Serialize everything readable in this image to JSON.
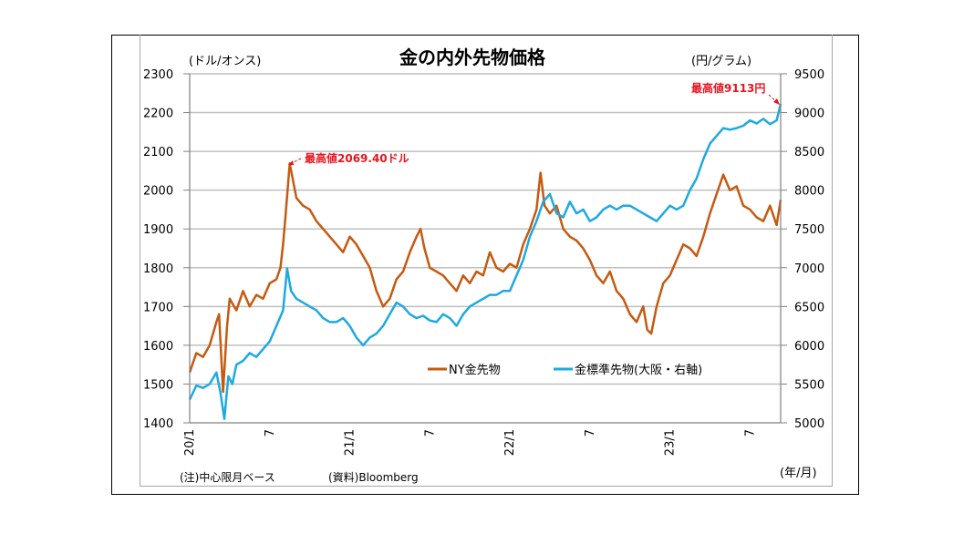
{
  "chart_data": {
    "type": "line",
    "title": "金の内外先物価格",
    "ylabel_left": "(ドル/オンス)",
    "ylabel_right": "(円/グラム)",
    "xlabel": "(年/月)",
    "note": "(注)中心限月ベース",
    "source": "(資料)Bloomberg",
    "ylim_left": [
      1400,
      2300
    ],
    "ylim_right": [
      5000,
      9500
    ],
    "yticks_left": [
      "1400",
      "1500",
      "1600",
      "1700",
      "1800",
      "1900",
      "2000",
      "2100",
      "2200",
      "2300"
    ],
    "yticks_right": [
      "5000",
      "5500",
      "6000",
      "6500",
      "7000",
      "7500",
      "8000",
      "8500",
      "9000",
      "9500"
    ],
    "xticks": [
      {
        "label": "20/1",
        "month": 0,
        "rotated": true
      },
      {
        "label": "7",
        "month": 6,
        "rotated": true
      },
      {
        "label": "21/1",
        "month": 12,
        "rotated": true
      },
      {
        "label": "7",
        "month": 18,
        "rotated": true
      },
      {
        "label": "22/1",
        "month": 24,
        "rotated": true
      },
      {
        "label": "7",
        "month": 30,
        "rotated": true
      },
      {
        "label": "23/1",
        "month": 36,
        "rotated": true
      },
      {
        "label": "7",
        "month": 42,
        "rotated": true
      }
    ],
    "xrange_months": [
      0,
      44.3
    ],
    "grid": true,
    "legend_position": "bottom-center-inside",
    "series": [
      {
        "name": "NY金先物",
        "axis": "left",
        "color": "#c55a11",
        "x_months": [
          0,
          0.5,
          1,
          1.5,
          2,
          2.2,
          2.5,
          2.8,
          3,
          3.5,
          4,
          4.5,
          5,
          5.5,
          6,
          6.5,
          6.8,
          7,
          7.2,
          7.5,
          8,
          8.5,
          9,
          9.5,
          10,
          10.5,
          11,
          11.5,
          12,
          12.5,
          13,
          13.5,
          14,
          14.5,
          15,
          15.5,
          16,
          16.5,
          17,
          17.3,
          17.6,
          18,
          18.5,
          19,
          19.5,
          20,
          20.5,
          21,
          21.5,
          22,
          22.5,
          23,
          23.5,
          24,
          24.5,
          25,
          25.5,
          26,
          26.3,
          26.6,
          27,
          27.5,
          28,
          28.5,
          29,
          29.5,
          30,
          30.5,
          31,
          31.5,
          32,
          32.5,
          33,
          33.5,
          34,
          34.3,
          34.6,
          35,
          35.5,
          36,
          36.5,
          37,
          37.5,
          38,
          38.5,
          39,
          39.5,
          40,
          40.5,
          41,
          41.5,
          42,
          42.5,
          43,
          43.5,
          44,
          44.3
        ],
        "values": [
          1530,
          1580,
          1570,
          1600,
          1660,
          1680,
          1480,
          1650,
          1720,
          1690,
          1740,
          1700,
          1730,
          1720,
          1760,
          1770,
          1800,
          1860,
          1940,
          2069,
          1980,
          1960,
          1950,
          1920,
          1900,
          1880,
          1860,
          1840,
          1880,
          1860,
          1830,
          1800,
          1740,
          1700,
          1720,
          1770,
          1790,
          1840,
          1880,
          1900,
          1850,
          1800,
          1790,
          1780,
          1760,
          1740,
          1780,
          1760,
          1790,
          1780,
          1840,
          1800,
          1790,
          1810,
          1800,
          1860,
          1900,
          1950,
          2045,
          1960,
          1940,
          1960,
          1900,
          1880,
          1870,
          1850,
          1820,
          1780,
          1760,
          1790,
          1740,
          1720,
          1680,
          1660,
          1700,
          1640,
          1630,
          1700,
          1760,
          1780,
          1820,
          1860,
          1850,
          1830,
          1880,
          1940,
          1990,
          2040,
          2000,
          2010,
          1960,
          1950,
          1930,
          1920,
          1960,
          1910,
          1975
        ],
        "annotation": {
          "text": "最高値2069.40ドル",
          "at_month": 7.5
        }
      },
      {
        "name": "金標準先物(大阪・右軸)",
        "axis": "right",
        "color": "#1ea9e1",
        "x_months": [
          0,
          0.5,
          1,
          1.5,
          2,
          2.3,
          2.6,
          2.9,
          3.2,
          3.5,
          4,
          4.5,
          5,
          5.5,
          6,
          6.5,
          7,
          7.3,
          7.6,
          8,
          8.5,
          9,
          9.5,
          10,
          10.5,
          11,
          11.5,
          12,
          12.5,
          13,
          13.5,
          14,
          14.5,
          15,
          15.5,
          16,
          16.5,
          17,
          17.5,
          18,
          18.5,
          19,
          19.5,
          20,
          20.5,
          21,
          21.5,
          22,
          22.5,
          23,
          23.5,
          24,
          24.5,
          25,
          25.5,
          26,
          26.5,
          27,
          27.5,
          28,
          28.5,
          29,
          29.5,
          30,
          30.5,
          31,
          31.5,
          32,
          32.5,
          33,
          33.5,
          34,
          34.5,
          35,
          35.5,
          36,
          36.5,
          37,
          37.5,
          38,
          38.5,
          39,
          39.5,
          40,
          40.5,
          41,
          41.5,
          42,
          42.5,
          43,
          43.5,
          44,
          44.3
        ],
        "values": [
          5300,
          5480,
          5450,
          5500,
          5650,
          5400,
          5050,
          5600,
          5500,
          5750,
          5800,
          5900,
          5850,
          5950,
          6050,
          6250,
          6450,
          6990,
          6700,
          6600,
          6550,
          6500,
          6450,
          6350,
          6300,
          6300,
          6350,
          6250,
          6100,
          6000,
          6100,
          6150,
          6250,
          6400,
          6550,
          6500,
          6400,
          6350,
          6380,
          6320,
          6300,
          6400,
          6350,
          6250,
          6400,
          6500,
          6550,
          6600,
          6650,
          6650,
          6700,
          6700,
          6900,
          7100,
          7400,
          7600,
          7850,
          7950,
          7700,
          7650,
          7850,
          7700,
          7750,
          7600,
          7650,
          7750,
          7800,
          7750,
          7800,
          7800,
          7750,
          7700,
          7650,
          7600,
          7700,
          7800,
          7750,
          7800,
          8000,
          8150,
          8400,
          8600,
          8700,
          8800,
          8780,
          8800,
          8830,
          8900,
          8860,
          8920,
          8850,
          8900,
          9113
        ],
        "annotation": {
          "text": "最高値9113円",
          "at_month": 44.3
        }
      }
    ]
  }
}
